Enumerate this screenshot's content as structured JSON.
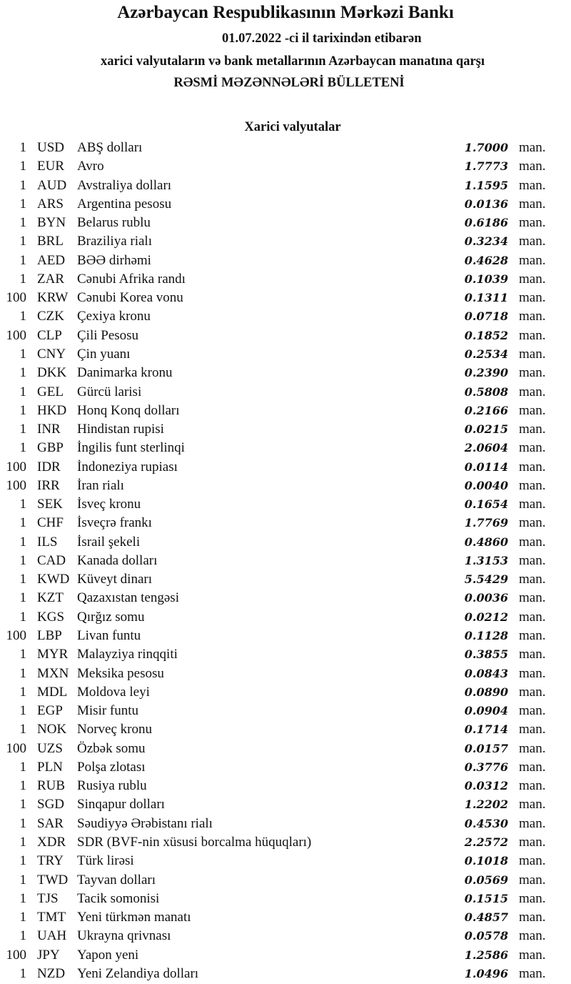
{
  "header": {
    "title": "Azərbaycan Respublikasının Mərkəzi Bankı",
    "date_line": "01.07.2022 -ci il tarixindən etibarən",
    "subtitle": "xarici valyutaların və bank metallarının Azərbaycan manatına qarşı",
    "bulletin": "RƏSMİ MƏZƏNNƏLƏRİ BÜLLETENİ"
  },
  "section": {
    "title": "Xarici valyutalar",
    "unit": "man.",
    "rows": [
      {
        "qty": "1",
        "code": "USD",
        "name": "ABŞ dolları",
        "rate": "1.7000"
      },
      {
        "qty": "1",
        "code": "EUR",
        "name": "Avro",
        "rate": "1.7773"
      },
      {
        "qty": "1",
        "code": "AUD",
        "name": "Avstraliya dolları",
        "rate": "1.1595"
      },
      {
        "qty": "1",
        "code": "ARS",
        "name": "Argentina pesosu",
        "rate": "0.0136"
      },
      {
        "qty": "1",
        "code": "BYN",
        "name": "Belarus rublu",
        "rate": "0.6186"
      },
      {
        "qty": "1",
        "code": "BRL",
        "name": "Braziliya rialı",
        "rate": "0.3234"
      },
      {
        "qty": "1",
        "code": "AED",
        "name": "BƏƏ dirhəmi",
        "rate": "0.4628"
      },
      {
        "qty": "1",
        "code": "ZAR",
        "name": "Cənubi Afrika randı",
        "rate": "0.1039"
      },
      {
        "qty": "100",
        "code": "KRW",
        "name": "Cənubi Korea vonu",
        "rate": "0.1311"
      },
      {
        "qty": "1",
        "code": "CZK",
        "name": "Çexiya kronu",
        "rate": "0.0718"
      },
      {
        "qty": "100",
        "code": "CLP",
        "name": "Çili Pesosu",
        "rate": "0.1852"
      },
      {
        "qty": "1",
        "code": "CNY",
        "name": "Çin yuanı",
        "rate": "0.2534"
      },
      {
        "qty": "1",
        "code": "DKK",
        "name": "Danimarka kronu",
        "rate": "0.2390"
      },
      {
        "qty": "1",
        "code": "GEL",
        "name": "Gürcü larisi",
        "rate": "0.5808"
      },
      {
        "qty": "1",
        "code": "HKD",
        "name": "Honq Konq dolları",
        "rate": "0.2166"
      },
      {
        "qty": "1",
        "code": "INR",
        "name": "Hindistan rupisi",
        "rate": "0.0215"
      },
      {
        "qty": "1",
        "code": "GBP",
        "name": "İngilis funt sterlinqi",
        "rate": "2.0604"
      },
      {
        "qty": "100",
        "code": "IDR",
        "name": "İndoneziya rupiası",
        "rate": "0.0114"
      },
      {
        "qty": "100",
        "code": "IRR",
        "name": "İran rialı",
        "rate": "0.0040"
      },
      {
        "qty": "1",
        "code": "SEK",
        "name": "İsveç kronu",
        "rate": "0.1654"
      },
      {
        "qty": "1",
        "code": "CHF",
        "name": "İsveçrə frankı",
        "rate": "1.7769"
      },
      {
        "qty": "1",
        "code": "ILS",
        "name": "İsrail şekeli",
        "rate": "0.4860"
      },
      {
        "qty": "1",
        "code": "CAD",
        "name": "Kanada dolları",
        "rate": "1.3153"
      },
      {
        "qty": "1",
        "code": "KWD",
        "name": "Küveyt dinarı",
        "rate": "5.5429"
      },
      {
        "qty": "1",
        "code": "KZT",
        "name": "Qazaxıstan tengəsi",
        "rate": "0.0036"
      },
      {
        "qty": "1",
        "code": "KGS",
        "name": "Qırğız somu",
        "rate": "0.0212"
      },
      {
        "qty": "100",
        "code": "LBP",
        "name": "Livan funtu",
        "rate": "0.1128"
      },
      {
        "qty": "1",
        "code": "MYR",
        "name": "Malayziya rinqqiti",
        "rate": "0.3855"
      },
      {
        "qty": "1",
        "code": "MXN",
        "name": "Meksika pesosu",
        "rate": "0.0843"
      },
      {
        "qty": "1",
        "code": "MDL",
        "name": "Moldova leyi",
        "rate": "0.0890"
      },
      {
        "qty": "1",
        "code": "EGP",
        "name": "Misir funtu",
        "rate": "0.0904"
      },
      {
        "qty": "1",
        "code": "NOK",
        "name": "Norveç kronu",
        "rate": "0.1714"
      },
      {
        "qty": "100",
        "code": "UZS",
        "name": "Özbək somu",
        "rate": "0.0157"
      },
      {
        "qty": "1",
        "code": "PLN",
        "name": "Polşa zlotası",
        "rate": "0.3776"
      },
      {
        "qty": "1",
        "code": "RUB",
        "name": "Rusiya rublu",
        "rate": "0.0312"
      },
      {
        "qty": "1",
        "code": "SGD",
        "name": "Sinqapur dolları",
        "rate": "1.2202"
      },
      {
        "qty": "1",
        "code": "SAR",
        "name": "Səudiyyə Ərəbistanı rialı",
        "rate": "0.4530"
      },
      {
        "qty": "1",
        "code": "XDR",
        "name": "SDR (BVF-nin xüsusi borcalma hüquqları)",
        "rate": "2.2572"
      },
      {
        "qty": "1",
        "code": "TRY",
        "name": "Türk lirəsi",
        "rate": "0.1018"
      },
      {
        "qty": "1",
        "code": "TWD",
        "name": "Tayvan dolları",
        "rate": "0.0569"
      },
      {
        "qty": "1",
        "code": "TJS",
        "name": "Tacik somonisi",
        "rate": "0.1515"
      },
      {
        "qty": "1",
        "code": "TMT",
        "name": "Yeni türkmən manatı",
        "rate": "0.4857"
      },
      {
        "qty": "1",
        "code": "UAH",
        "name": "Ukrayna qrivnası",
        "rate": "0.0578"
      },
      {
        "qty": "100",
        "code": "JPY",
        "name": "Yapon yeni",
        "rate": "1.2586"
      },
      {
        "qty": "1",
        "code": "NZD",
        "name": "Yeni Zelandiya dolları",
        "rate": "1.0496"
      }
    ]
  }
}
